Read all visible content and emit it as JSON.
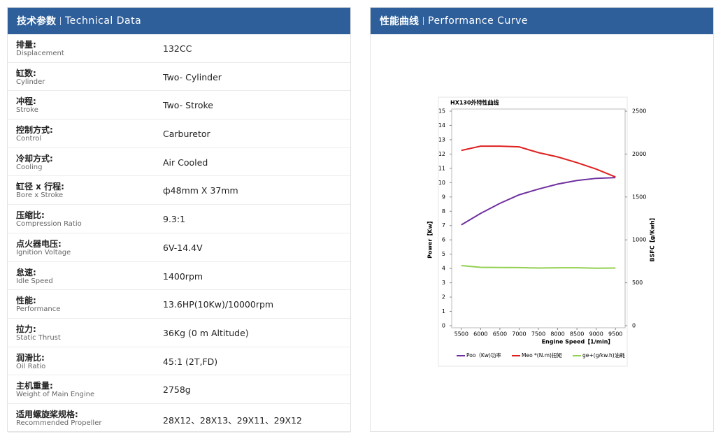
{
  "left": {
    "title_cn": "技术参数",
    "title_en": "Technical Data",
    "rows": [
      {
        "label_cn": "排量:",
        "label_en": "Displacement",
        "value": "132CC"
      },
      {
        "label_cn": "缸数:",
        "label_en": "Cylinder",
        "value": "Two- Cylinder"
      },
      {
        "label_cn": "冲程:",
        "label_en": "Stroke",
        "value": "Two- Stroke"
      },
      {
        "label_cn": "控制方式:",
        "label_en": "Control",
        "value": "Carburetor"
      },
      {
        "label_cn": "冷却方式:",
        "label_en": "Cooling",
        "value": "Air Cooled"
      },
      {
        "label_cn": "缸径 x 行程:",
        "label_en": "Bore x Stroke",
        "value": "ф48mm X 37mm"
      },
      {
        "label_cn": "压缩比:",
        "label_en": "Compression Ratio",
        "value": "9.3:1"
      },
      {
        "label_cn": "点火器电压:",
        "label_en": "Ignition Voltage",
        "value": "6V-14.4V"
      },
      {
        "label_cn": "怠速:",
        "label_en": "Idle Speed",
        "value": "1400rpm"
      },
      {
        "label_cn": "性能:",
        "label_en": "Performance",
        "value": "13.6HP(10Kw)/10000rpm"
      },
      {
        "label_cn": "拉力:",
        "label_en": "Static Thrust",
        "value": "36Kg (0 m Altitude)"
      },
      {
        "label_cn": "润滑比:",
        "label_en": "Oil Ratio",
        "value": "45:1 (2T,FD)"
      },
      {
        "label_cn": "主机重量:",
        "label_en": "Weight of Main Engine",
        "value": "2758g"
      },
      {
        "label_cn": "适用螺旋桨规格:",
        "label_en": "Recommended Propeller",
        "value": "28X12、28X13、29X11、29X12"
      }
    ]
  },
  "right": {
    "title_cn": "性能曲线",
    "title_en": "Performance Curve"
  },
  "chart_data": {
    "type": "line",
    "title": "HX130外特性曲线",
    "x_label": "Engine Speed【1/min】",
    "y_label": "Power【Kw】",
    "y2_label": "BSFC【g/Kwh】",
    "x": [
      5500,
      6000,
      6500,
      7000,
      7500,
      8000,
      8500,
      9000,
      9500
    ],
    "xlim": [
      5250,
      9750
    ],
    "xticks": [
      5500,
      6000,
      6500,
      7000,
      7500,
      8000,
      8500,
      9000,
      9500
    ],
    "ylim": [
      0,
      15
    ],
    "yticks": [
      0,
      1,
      2,
      3,
      4,
      5,
      6,
      7,
      8,
      9,
      10,
      11,
      12,
      13,
      14,
      15
    ],
    "y2lim": [
      0,
      2500
    ],
    "y2ticks": [
      0,
      500,
      1000,
      1500,
      2000,
      2500
    ],
    "grid": false,
    "series": [
      {
        "name": "Poo（Kw)功率",
        "color": "#7030a0",
        "values": [
          7.05,
          7.85,
          8.55,
          9.15,
          9.55,
          9.9,
          10.15,
          10.3,
          10.35
        ]
      },
      {
        "name": "Meo *(N.m)扭矩",
        "color": "#e02020",
        "values": [
          12.25,
          12.55,
          12.55,
          12.5,
          12.1,
          11.8,
          11.4,
          10.95,
          10.4
        ]
      },
      {
        "name": "ge+(g/kw.h)油耗",
        "color": "#92d050",
        "axis": "y2",
        "values": [
          700,
          680,
          678,
          677,
          672,
          675,
          675,
          670,
          672
        ]
      }
    ]
  }
}
